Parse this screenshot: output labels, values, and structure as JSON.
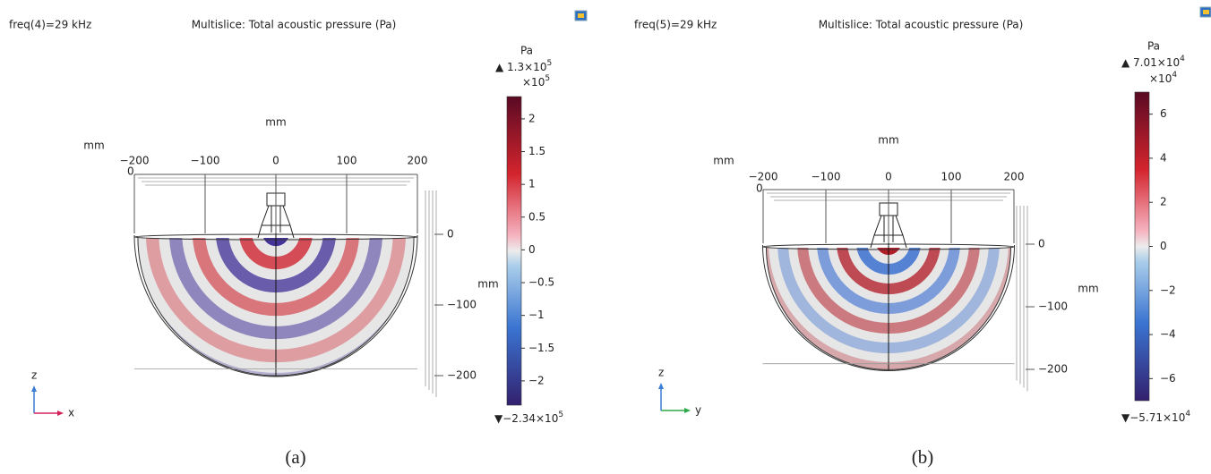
{
  "panels": [
    {
      "freq": "freq(4)=29 kHz",
      "title": "Multislice: Total acoustic pressure (Pa)",
      "x_axis": {
        "label": "mm",
        "ticks": [
          {
            "value": -200,
            "label": "−200"
          },
          {
            "value": -100,
            "label": "−100"
          },
          0,
          100,
          200
        ]
      },
      "y_axis": {
        "label": "mm",
        "corner_tick": 0
      },
      "z_axis": {
        "label": "mm",
        "ticks": [
          0,
          {
            "value": -100,
            "label": "−100"
          },
          {
            "value": -200,
            "label": "−200"
          }
        ]
      },
      "colorbar": {
        "unit": "Pa",
        "max": {
          "text": "▲ 1.3×10",
          "exp": "5"
        },
        "multiplier": {
          "text": "×10",
          "exp": "5"
        },
        "min": {
          "text": "▼−2.34×10",
          "exp": "5"
        },
        "lim": [
          -2.37,
          2.34
        ],
        "ticks": [
          2,
          1.5,
          1,
          0.5,
          0,
          {
            "value": -0.5,
            "label": "−0.5"
          },
          {
            "value": -1,
            "label": "−1"
          },
          {
            "value": -1.5,
            "label": "−1.5"
          },
          {
            "value": -2,
            "label": "−2"
          }
        ]
      },
      "triad": {
        "vertical": "z",
        "horizontal": "x"
      },
      "label": "(a)"
    },
    {
      "freq": "freq(5)=29 kHz",
      "title": "Multislice: Total acoustic pressure (Pa)",
      "x_axis": {
        "label": "mm",
        "ticks": [
          {
            "value": -200,
            "label": "−200"
          },
          {
            "value": -100,
            "label": "−100"
          },
          0,
          100,
          200
        ]
      },
      "y_axis": {
        "label": "mm",
        "corner_tick": 0
      },
      "z_axis": {
        "label": "mm",
        "ticks": [
          0,
          {
            "value": -100,
            "label": "−100"
          },
          {
            "value": -200,
            "label": "−200"
          }
        ]
      },
      "colorbar": {
        "unit": "Pa",
        "max": {
          "text": "▲ 7.01×10",
          "exp": "4"
        },
        "multiplier": {
          "text": "×10",
          "exp": "4"
        },
        "min": {
          "text": "▼−5.71×10",
          "exp": "4"
        },
        "lim": [
          -7.0,
          7.0
        ],
        "ticks": [
          6,
          4,
          2,
          0,
          {
            "value": -2,
            "label": "−2"
          },
          {
            "value": -4,
            "label": "−4"
          },
          {
            "value": -6,
            "label": "−6"
          }
        ]
      },
      "triad": {
        "vertical": "z",
        "horizontal": "y"
      },
      "label": "(b)"
    }
  ]
}
